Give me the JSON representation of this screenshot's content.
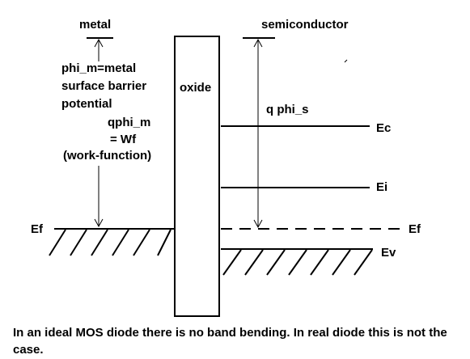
{
  "diagram": {
    "labels": {
      "metal": "metal",
      "semiconductor": "semiconductor",
      "oxide": "oxide",
      "phi_m_line1": "phi_m=metal",
      "phi_m_line2": "surface barrier",
      "phi_m_line3": "potential",
      "qphi_m_line1": "qphi_m",
      "qphi_m_line2": "= Wf",
      "qphi_m_line3": "(work-function)",
      "qphi_s": "q phi_s",
      "ef_left": "Ef",
      "ef_right": "Ef",
      "ec": "Ec",
      "ei": "Ei",
      "ev": "Ev"
    },
    "caption": "In an ideal MOS diode there is no band bending. In real diode this is not the case."
  }
}
